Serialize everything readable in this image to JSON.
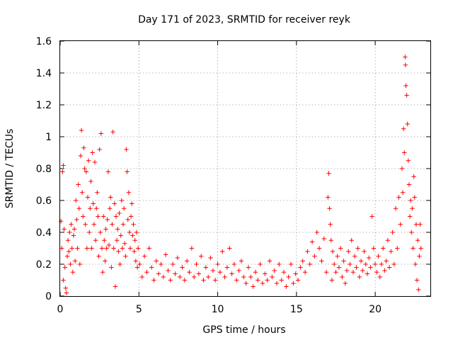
{
  "chart_data": {
    "type": "scatter",
    "title": "Day 171 of 2023, SRMTID for receiver reyk",
    "xlabel": "GPS time / hours",
    "ylabel": "SRMTID / TECUs",
    "xlim": [
      0,
      23.5
    ],
    "ylim": [
      0,
      1.6
    ],
    "xticks": [
      0,
      5,
      10,
      15,
      20
    ],
    "xtick_labels": [
      "0",
      "5",
      "10",
      "15",
      "20"
    ],
    "yticks": [
      0,
      0.2,
      0.4,
      0.6,
      0.8,
      1.0,
      1.2,
      1.4,
      1.6
    ],
    "ytick_labels": [
      "0",
      "0.2",
      "0.4",
      "0.6",
      "0.8",
      "1",
      "1.2",
      "1.4",
      "1.6"
    ],
    "grid": true,
    "marker": "+",
    "color": "#ff0000",
    "series": [
      {
        "name": "SRMTID",
        "points": [
          [
            0.05,
            0.47
          ],
          [
            0.1,
            0.3
          ],
          [
            0.15,
            0.78
          ],
          [
            0.2,
            0.82
          ],
          [
            0.2,
            0.1
          ],
          [
            0.25,
            0.42
          ],
          [
            0.3,
            0.18
          ],
          [
            0.35,
            0.05
          ],
          [
            0.4,
            0.02
          ],
          [
            0.45,
            0.25
          ],
          [
            0.5,
            0.35
          ],
          [
            0.55,
            0.28
          ],
          [
            0.6,
            0.4
          ],
          [
            0.65,
            0.2
          ],
          [
            0.7,
            0.45
          ],
          [
            0.75,
            0.3
          ],
          [
            0.8,
            0.15
          ],
          [
            0.85,
            0.38
          ],
          [
            0.9,
            0.42
          ],
          [
            0.95,
            0.22
          ],
          [
            1.0,
            0.6
          ],
          [
            1.05,
            0.48
          ],
          [
            1.1,
            0.3
          ],
          [
            1.15,
            0.7
          ],
          [
            1.2,
            0.55
          ],
          [
            1.25,
            0.2
          ],
          [
            1.3,
            0.88
          ],
          [
            1.35,
            1.04
          ],
          [
            1.4,
            0.65
          ],
          [
            1.45,
            0.5
          ],
          [
            1.5,
            0.93
          ],
          [
            1.55,
            0.8
          ],
          [
            1.6,
            0.45
          ],
          [
            1.65,
            0.78
          ],
          [
            1.7,
            0.3
          ],
          [
            1.75,
            0.62
          ],
          [
            1.8,
            0.85
          ],
          [
            1.85,
            0.4
          ],
          [
            1.9,
            0.55
          ],
          [
            1.95,
            0.72
          ],
          [
            2.0,
            0.3
          ],
          [
            2.05,
            0.9
          ],
          [
            2.1,
            0.58
          ],
          [
            2.15,
            0.45
          ],
          [
            2.2,
            0.84
          ],
          [
            2.25,
            0.35
          ],
          [
            2.3,
            0.55
          ],
          [
            2.35,
            0.65
          ],
          [
            2.4,
            0.5
          ],
          [
            2.45,
            0.25
          ],
          [
            2.5,
            0.92
          ],
          [
            2.55,
            0.4
          ],
          [
            2.6,
            1.02
          ],
          [
            2.65,
            0.3
          ],
          [
            2.7,
            0.15
          ],
          [
            2.75,
            0.5
          ],
          [
            2.8,
            0.35
          ],
          [
            2.85,
            0.22
          ],
          [
            2.9,
            0.42
          ],
          [
            2.95,
            0.3
          ],
          [
            3.0,
            0.48
          ],
          [
            3.05,
            0.78
          ],
          [
            3.1,
            0.32
          ],
          [
            3.15,
            0.55
          ],
          [
            3.2,
            0.62
          ],
          [
            3.25,
            0.18
          ],
          [
            3.3,
            0.45
          ],
          [
            3.35,
            1.03
          ],
          [
            3.4,
            0.3
          ],
          [
            3.45,
            0.58
          ],
          [
            3.5,
            0.06
          ],
          [
            3.55,
            0.5
          ],
          [
            3.6,
            0.35
          ],
          [
            3.65,
            0.42
          ],
          [
            3.7,
            0.28
          ],
          [
            3.75,
            0.52
          ],
          [
            3.8,
            0.2
          ],
          [
            3.85,
            0.38
          ],
          [
            3.9,
            0.6
          ],
          [
            3.95,
            0.3
          ],
          [
            4.0,
            0.45
          ],
          [
            4.05,
            0.55
          ],
          [
            4.1,
            0.33
          ],
          [
            4.15,
            0.25
          ],
          [
            4.2,
            0.92
          ],
          [
            4.25,
            0.78
          ],
          [
            4.3,
            0.48
          ],
          [
            4.35,
            0.65
          ],
          [
            4.4,
            0.4
          ],
          [
            4.45,
            0.3
          ],
          [
            4.5,
            0.5
          ],
          [
            4.55,
            0.58
          ],
          [
            4.6,
            0.38
          ],
          [
            4.65,
            0.45
          ],
          [
            4.7,
            0.28
          ],
          [
            4.75,
            0.35
          ],
          [
            4.8,
            0.22
          ],
          [
            4.85,
            0.4
          ],
          [
            4.9,
            0.18
          ],
          [
            4.95,
            0.3
          ],
          [
            5.05,
            0.2
          ],
          [
            5.2,
            0.12
          ],
          [
            5.35,
            0.25
          ],
          [
            5.5,
            0.15
          ],
          [
            5.65,
            0.3
          ],
          [
            5.8,
            0.18
          ],
          [
            5.95,
            0.1
          ],
          [
            6.1,
            0.22
          ],
          [
            6.25,
            0.14
          ],
          [
            6.4,
            0.2
          ],
          [
            6.55,
            0.12
          ],
          [
            6.7,
            0.26
          ],
          [
            6.85,
            0.16
          ],
          [
            7.0,
            0.1
          ],
          [
            7.15,
            0.2
          ],
          [
            7.3,
            0.14
          ],
          [
            7.45,
            0.24
          ],
          [
            7.6,
            0.12
          ],
          [
            7.75,
            0.18
          ],
          [
            7.9,
            0.1
          ],
          [
            8.05,
            0.22
          ],
          [
            8.2,
            0.15
          ],
          [
            8.35,
            0.3
          ],
          [
            8.5,
            0.12
          ],
          [
            8.65,
            0.2
          ],
          [
            8.8,
            0.14
          ],
          [
            8.95,
            0.25
          ],
          [
            9.1,
            0.1
          ],
          [
            9.25,
            0.18
          ],
          [
            9.4,
            0.12
          ],
          [
            9.55,
            0.24
          ],
          [
            9.7,
            0.16
          ],
          [
            9.85,
            0.1
          ],
          [
            10.0,
            0.2
          ],
          [
            10.15,
            0.15
          ],
          [
            10.3,
            0.28
          ],
          [
            10.45,
            0.12
          ],
          [
            10.6,
            0.18
          ],
          [
            10.75,
            0.3
          ],
          [
            10.9,
            0.14
          ],
          [
            11.05,
            0.2
          ],
          [
            11.2,
            0.1
          ],
          [
            11.35,
            0.16
          ],
          [
            11.5,
            0.22
          ],
          [
            11.65,
            0.12
          ],
          [
            11.8,
            0.08
          ],
          [
            11.95,
            0.18
          ],
          [
            12.1,
            0.12
          ],
          [
            12.25,
            0.06
          ],
          [
            12.4,
            0.15
          ],
          [
            12.55,
            0.1
          ],
          [
            12.7,
            0.2
          ],
          [
            12.85,
            0.08
          ],
          [
            13.0,
            0.14
          ],
          [
            13.15,
            0.1
          ],
          [
            13.3,
            0.22
          ],
          [
            13.45,
            0.12
          ],
          [
            13.6,
            0.16
          ],
          [
            13.75,
            0.08
          ],
          [
            13.9,
            0.2
          ],
          [
            14.05,
            0.1
          ],
          [
            14.2,
            0.15
          ],
          [
            14.35,
            0.06
          ],
          [
            14.5,
            0.12
          ],
          [
            14.65,
            0.2
          ],
          [
            14.8,
            0.08
          ],
          [
            14.95,
            0.14
          ],
          [
            15.1,
            0.1
          ],
          [
            15.25,
            0.18
          ],
          [
            15.4,
            0.22
          ],
          [
            15.55,
            0.15
          ],
          [
            15.7,
            0.28
          ],
          [
            15.85,
            0.2
          ],
          [
            16.0,
            0.34
          ],
          [
            16.15,
            0.25
          ],
          [
            16.3,
            0.4
          ],
          [
            16.45,
            0.3
          ],
          [
            16.6,
            0.22
          ],
          [
            16.75,
            0.36
          ],
          [
            16.9,
            0.15
          ],
          [
            17.0,
            0.62
          ],
          [
            17.05,
            0.77
          ],
          [
            17.1,
            0.55
          ],
          [
            17.15,
            0.45
          ],
          [
            17.2,
            0.35
          ],
          [
            17.25,
            0.1
          ],
          [
            17.3,
            0.28
          ],
          [
            17.4,
            0.2
          ],
          [
            17.5,
            0.15
          ],
          [
            17.6,
            0.25
          ],
          [
            17.7,
            0.18
          ],
          [
            17.8,
            0.3
          ],
          [
            17.9,
            0.12
          ],
          [
            18.0,
            0.22
          ],
          [
            18.1,
            0.08
          ],
          [
            18.2,
            0.16
          ],
          [
            18.3,
            0.28
          ],
          [
            18.4,
            0.2
          ],
          [
            18.5,
            0.35
          ],
          [
            18.6,
            0.15
          ],
          [
            18.7,
            0.25
          ],
          [
            18.8,
            0.18
          ],
          [
            18.9,
            0.3
          ],
          [
            19.0,
            0.12
          ],
          [
            19.1,
            0.22
          ],
          [
            19.2,
            0.16
          ],
          [
            19.3,
            0.28
          ],
          [
            19.4,
            0.2
          ],
          [
            19.5,
            0.14
          ],
          [
            19.6,
            0.24
          ],
          [
            19.7,
            0.18
          ],
          [
            19.8,
            0.5
          ],
          [
            19.9,
            0.3
          ],
          [
            20.0,
            0.2
          ],
          [
            20.1,
            0.15
          ],
          [
            20.2,
            0.25
          ],
          [
            20.3,
            0.12
          ],
          [
            20.4,
            0.2
          ],
          [
            20.5,
            0.3
          ],
          [
            20.6,
            0.16
          ],
          [
            20.7,
            0.22
          ],
          [
            20.8,
            0.35
          ],
          [
            20.9,
            0.18
          ],
          [
            21.0,
            0.28
          ],
          [
            21.1,
            0.4
          ],
          [
            21.2,
            0.2
          ],
          [
            21.3,
            0.55
          ],
          [
            21.4,
            0.3
          ],
          [
            21.5,
            0.62
          ],
          [
            21.6,
            0.45
          ],
          [
            21.7,
            0.8
          ],
          [
            21.75,
            0.65
          ],
          [
            21.8,
            1.05
          ],
          [
            21.85,
            0.9
          ],
          [
            21.9,
            1.5
          ],
          [
            21.92,
            1.45
          ],
          [
            21.95,
            1.32
          ],
          [
            22.0,
            1.26
          ],
          [
            22.05,
            1.08
          ],
          [
            22.1,
            0.85
          ],
          [
            22.15,
            0.7
          ],
          [
            22.2,
            0.5
          ],
          [
            22.25,
            0.6
          ],
          [
            22.3,
            0.4
          ],
          [
            22.35,
            0.55
          ],
          [
            22.4,
            0.3
          ],
          [
            22.45,
            0.75
          ],
          [
            22.5,
            0.62
          ],
          [
            22.55,
            0.2
          ],
          [
            22.6,
            0.45
          ],
          [
            22.65,
            0.1
          ],
          [
            22.7,
            0.35
          ],
          [
            22.75,
            0.04
          ],
          [
            22.8,
            0.25
          ],
          [
            22.85,
            0.45
          ],
          [
            22.9,
            0.3
          ]
        ]
      }
    ]
  }
}
